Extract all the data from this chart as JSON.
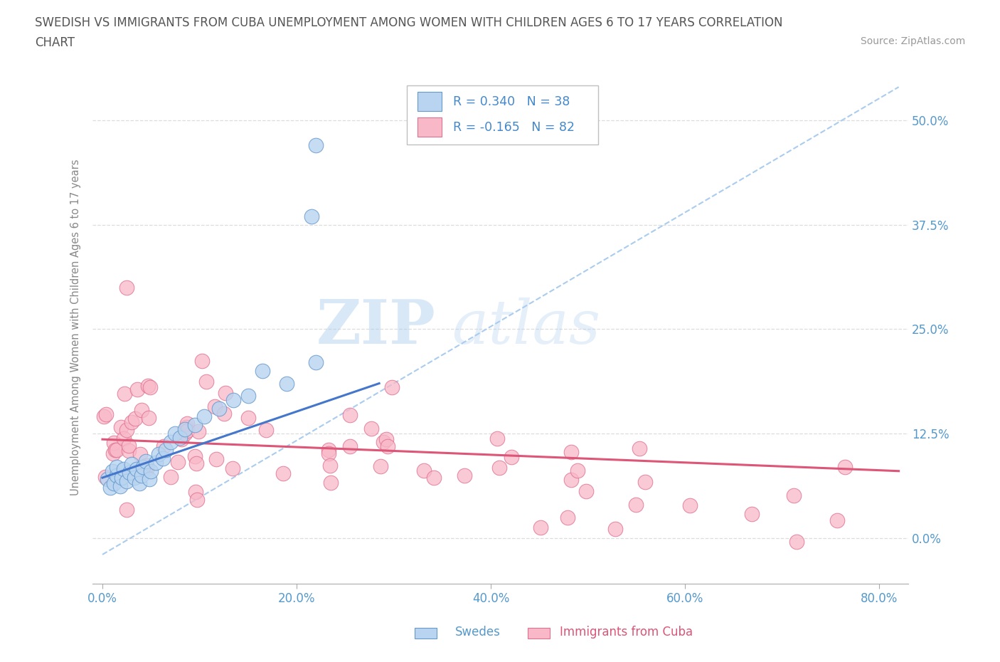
{
  "title_line1": "SWEDISH VS IMMIGRANTS FROM CUBA UNEMPLOYMENT AMONG WOMEN WITH CHILDREN AGES 6 TO 17 YEARS CORRELATION",
  "title_line2": "CHART",
  "source_text": "Source: ZipAtlas.com",
  "ylabel": "Unemployment Among Women with Children Ages 6 to 17 years",
  "xlabel_ticks": [
    "0.0%",
    "20.0%",
    "40.0%",
    "60.0%",
    "80.0%"
  ],
  "ytick_labels": [
    "0.0%",
    "12.5%",
    "25.0%",
    "37.5%",
    "50.0%"
  ],
  "ytick_vals": [
    0.0,
    0.125,
    0.25,
    0.375,
    0.5
  ],
  "xtick_vals": [
    0.0,
    0.2,
    0.4,
    0.6,
    0.8
  ],
  "xlim": [
    -0.01,
    0.83
  ],
  "ylim": [
    -0.055,
    0.56
  ],
  "watermark_zip": "ZIP",
  "watermark_atlas": "atlas",
  "legend_text1": "R = 0.340   N = 38",
  "legend_text2": "R = -0.165   N = 82",
  "color_swedish_fill": "#b8d4f0",
  "color_swedish_edge": "#6699cc",
  "color_cuba_fill": "#f8b8c8",
  "color_cuba_edge": "#e07090",
  "color_line_swedish": "#4477cc",
  "color_line_cuba": "#dd5577",
  "color_trend_dashed": "#aaccee",
  "title_color": "#555555",
  "axis_label_color": "#888888",
  "tick_color": "#5599cc",
  "legend_text_color": "#4488cc",
  "grid_color": "#dddddd",
  "swedish_line_x0": 0.0,
  "swedish_line_y0": 0.072,
  "swedish_line_x1": 0.285,
  "swedish_line_y1": 0.185,
  "cuba_line_x0": 0.0,
  "cuba_line_y0": 0.118,
  "cuba_line_x1": 0.82,
  "cuba_line_y1": 0.08,
  "dash_line_x0": 0.0,
  "dash_line_y0": -0.02,
  "dash_line_x1": 0.82,
  "dash_line_y1": 0.54
}
